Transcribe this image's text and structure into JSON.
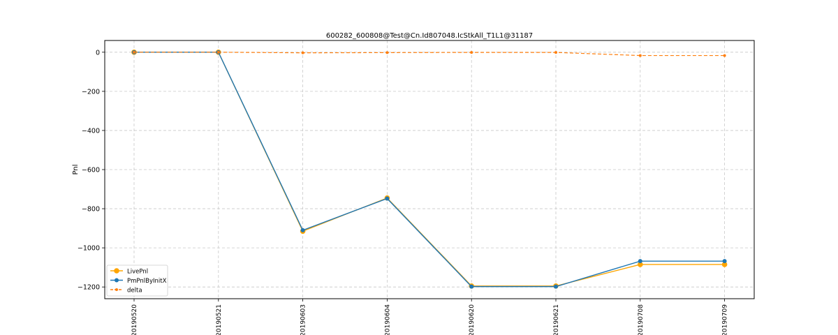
{
  "chart_data": {
    "type": "line",
    "title": "600282_600808@Test@Cn.Id807048.IcStkAll_T1L1@31187",
    "xlabel": "",
    "ylabel": "Pnl",
    "categories": [
      "20190520",
      "20190521",
      "20190603",
      "20190604",
      "20190620",
      "20190621",
      "20190708",
      "20190709"
    ],
    "ylim": [
      -1260,
      60
    ],
    "yticks": [
      0,
      -200,
      -400,
      -600,
      -800,
      -1000,
      -1200
    ],
    "ytick_labels": [
      "0",
      "−200",
      "−400",
      "−600",
      "−800",
      "−1000",
      "−1200"
    ],
    "grid": true,
    "legend_position": "lower-left",
    "series": [
      {
        "name": "LivePnl",
        "color": "#ffa500",
        "marker": "circle-large",
        "style": "solid",
        "values": [
          0,
          0,
          -915,
          -745,
          -1195,
          -1195,
          -1085,
          -1085
        ]
      },
      {
        "name": "PmPnlByInitX",
        "color": "#1f77b4",
        "marker": "circle",
        "style": "solid",
        "values": [
          0,
          0,
          -910,
          -748,
          -1198,
          -1198,
          -1068,
          -1068
        ]
      },
      {
        "name": "delta",
        "color": "#ff7f0e",
        "marker": "circle-small",
        "style": "dashed",
        "values": [
          0,
          0,
          -3,
          -2,
          -1,
          -1,
          -17,
          -17
        ]
      }
    ]
  }
}
